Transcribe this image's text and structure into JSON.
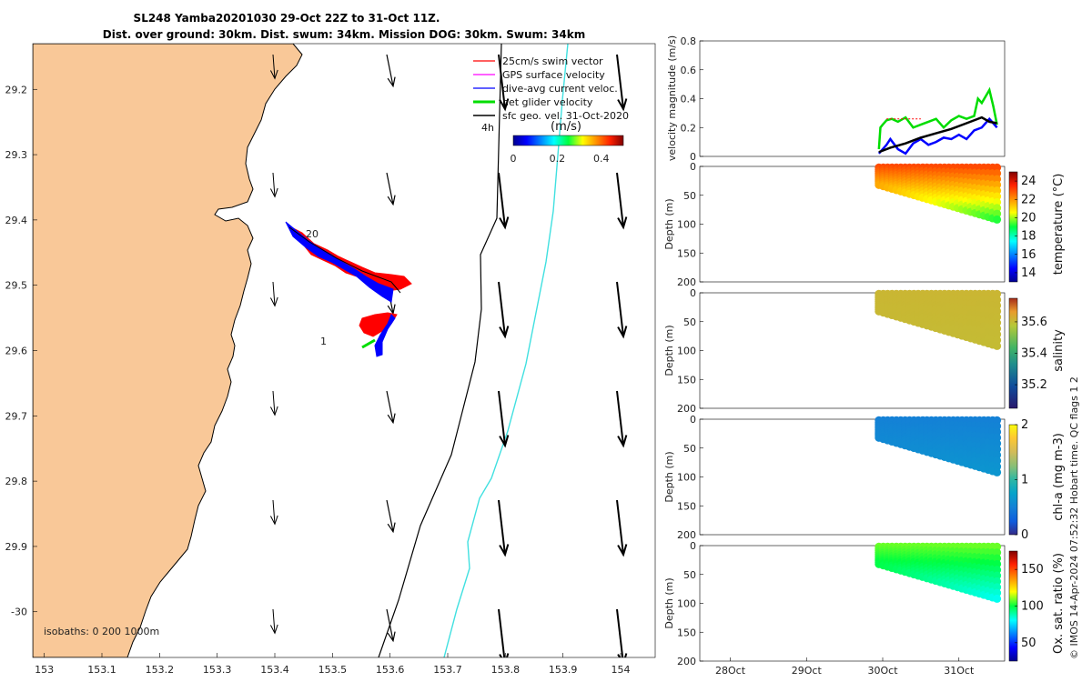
{
  "title_line1": "SL248 Yamba20201030 29-Oct 22Z to 31-Oct 11Z.",
  "title_line2": "Dist. over ground: 30km. Dist. swum: 34km. Mission DOG: 30km. Swum: 34km",
  "credit": "© IMOS 14-Apr-2024 07:52:32 Hobart time. QC flags 1  2",
  "colors": {
    "land": "#f9c898",
    "coast": "#000000",
    "swim": "#ff0000",
    "gps": "#ff00ff",
    "dive": "#0000ff",
    "net": "#00dd00",
    "sfc": "#000000",
    "isobath_200": "#000000",
    "isobath_1000": "#40e0e0"
  },
  "map": {
    "legend": [
      {
        "label": "25cm/s swim vector",
        "color": "#ff0000"
      },
      {
        "label": "GPS surface velocity",
        "color": "#ff00ff"
      },
      {
        "label": "dive-avg current veloc.",
        "color": "#0000ff"
      },
      {
        "label": "net glider velocity",
        "color": "#00dd00"
      },
      {
        "label": "sfc geo. vel. 31-Oct-2020",
        "color": "#000000"
      }
    ],
    "time_label": "4h",
    "colorbar_unit": "(m/s)",
    "colorbar_ticks": [
      "0",
      "0.2",
      "0.4"
    ],
    "colorbar_range": [
      0,
      0.5
    ],
    "isobath_text": "isobaths: 0   200  1000m",
    "track_start_label": "20",
    "track_end_label": "1"
  },
  "chart_data": [
    {
      "type": "scatter",
      "name": "map",
      "xlabel": "",
      "ylabel": "",
      "xlim": [
        152.98,
        154.06
      ],
      "ylim": [
        -30.07,
        -29.13
      ],
      "x_ticks": [
        "153",
        "153.1",
        "153.2",
        "153.3",
        "153.4",
        "153.5",
        "153.6",
        "153.7",
        "153.8",
        "153.9",
        "154"
      ],
      "y_ticks": [
        "29.2",
        "29.3",
        "29.4",
        "29.5",
        "29.6",
        "29.7",
        "29.8",
        "29.9",
        "-30"
      ],
      "y_tick_values": [
        -29.2,
        -29.3,
        -29.4,
        -29.5,
        -29.6,
        -29.7,
        -29.8,
        -29.9,
        -30.0
      ],
      "glider_track": [
        [
          153.42,
          -29.41
        ],
        [
          153.46,
          -29.445
        ],
        [
          153.5,
          -29.48
        ],
        [
          153.54,
          -29.5
        ],
        [
          153.6,
          -29.52
        ],
        [
          153.58,
          -29.56
        ],
        [
          153.56,
          -29.58
        ],
        [
          153.58,
          -29.6
        ]
      ],
      "isobath_200": [
        [
          153.6,
          -30.07
        ],
        [
          153.65,
          -29.95
        ],
        [
          153.72,
          -29.78
        ],
        [
          153.77,
          -29.62
        ],
        [
          153.78,
          -29.48
        ],
        [
          153.8,
          -29.27
        ],
        [
          153.81,
          -29.13
        ]
      ],
      "isobath_1000": [
        [
          153.7,
          -30.07
        ],
        [
          153.75,
          -29.92
        ],
        [
          153.78,
          -29.82
        ],
        [
          153.83,
          -29.68
        ],
        [
          153.86,
          -29.55
        ],
        [
          153.9,
          -29.45
        ],
        [
          153.92,
          -29.3
        ],
        [
          153.91,
          -29.13
        ]
      ]
    },
    {
      "type": "line",
      "name": "velocity",
      "ylabel": "velocity magnitude (m/s)",
      "ylim": [
        0,
        0.8
      ],
      "y_ticks": [
        "0",
        "0.2",
        "0.4",
        "0.6",
        "0.8"
      ],
      "series": [
        {
          "color": "#00dd00",
          "x": [
            29.95,
            29.97,
            30.0,
            30.05,
            30.12,
            30.2,
            30.3,
            30.4,
            30.5,
            30.6,
            30.7,
            30.8,
            30.9,
            31.0,
            31.1,
            31.2,
            31.25,
            31.3,
            31.4,
            31.45,
            31.5
          ],
          "y": [
            0.05,
            0.2,
            0.22,
            0.25,
            0.26,
            0.24,
            0.27,
            0.2,
            0.22,
            0.24,
            0.26,
            0.2,
            0.25,
            0.28,
            0.26,
            0.28,
            0.4,
            0.37,
            0.46,
            0.35,
            0.22
          ]
        },
        {
          "color": "#0000ff",
          "x": [
            29.95,
            30.0,
            30.05,
            30.1,
            30.2,
            30.3,
            30.4,
            30.5,
            30.6,
            30.7,
            30.8,
            30.9,
            31.0,
            31.1,
            31.2,
            31.3,
            31.4,
            31.5
          ],
          "y": [
            0.02,
            0.05,
            0.08,
            0.12,
            0.05,
            0.02,
            0.09,
            0.12,
            0.08,
            0.1,
            0.13,
            0.12,
            0.15,
            0.12,
            0.18,
            0.2,
            0.26,
            0.2
          ]
        },
        {
          "color": "#000000",
          "x": [
            29.95,
            30.1,
            30.3,
            30.5,
            30.7,
            30.9,
            31.1,
            31.3,
            31.4,
            31.5
          ],
          "y": [
            0.03,
            0.06,
            0.09,
            0.13,
            0.16,
            0.19,
            0.23,
            0.27,
            0.24,
            0.23
          ]
        }
      ]
    },
    {
      "type": "scatter",
      "name": "temperature",
      "ylabel": "Depth (m)",
      "cblabel": "temperature (°C)",
      "clim": [
        13,
        25
      ],
      "cb_ticks": [
        "24",
        "22",
        "20",
        "18",
        "16",
        "14"
      ],
      "cb_tick_values": [
        24,
        22,
        20,
        18,
        16,
        14
      ],
      "y_ticks": [
        "0",
        "50",
        "100",
        "150",
        "200"
      ],
      "top_value": 23.0,
      "bottom_value": 19.2
    },
    {
      "type": "scatter",
      "name": "salinity",
      "ylabel": "Depth (m)",
      "cblabel": "salinity",
      "clim": [
        35.05,
        35.75
      ],
      "cb_ticks": [
        "35.6",
        "35.4",
        "35.2"
      ],
      "cb_tick_values": [
        35.6,
        35.4,
        35.2
      ],
      "y_ticks": [
        "0",
        "50",
        "100",
        "150",
        "200"
      ],
      "top_value": 35.61,
      "bottom_value": 35.6
    },
    {
      "type": "scatter",
      "name": "chl-a",
      "ylabel": "Depth (m)",
      "cblabel": "chl-a (mg m-3)",
      "clim": [
        0,
        2
      ],
      "cb_ticks": [
        "2",
        "1",
        "0"
      ],
      "cb_tick_values": [
        2,
        1,
        0
      ],
      "y_ticks": [
        "0",
        "50",
        "100",
        "150",
        "200"
      ],
      "top_value": 0.5,
      "bottom_value": 0.65
    },
    {
      "type": "scatter",
      "name": "oxygen",
      "ylabel": "Depth (m)",
      "cblabel": "Ox. sat. ratio (%)",
      "clim": [
        25,
        175
      ],
      "cb_ticks": [
        "150",
        "100",
        "50"
      ],
      "cb_tick_values": [
        150,
        100,
        50
      ],
      "y_ticks": [
        "0",
        "50",
        "100",
        "150",
        "200"
      ],
      "top_value": 108,
      "bottom_value": 82
    }
  ],
  "time_axis": {
    "ticks": [
      "28Oct",
      "29Oct",
      "30Oct",
      "31Oct"
    ],
    "tick_values": [
      28,
      29,
      30,
      31
    ],
    "xlim": [
      27.6,
      31.6
    ]
  }
}
